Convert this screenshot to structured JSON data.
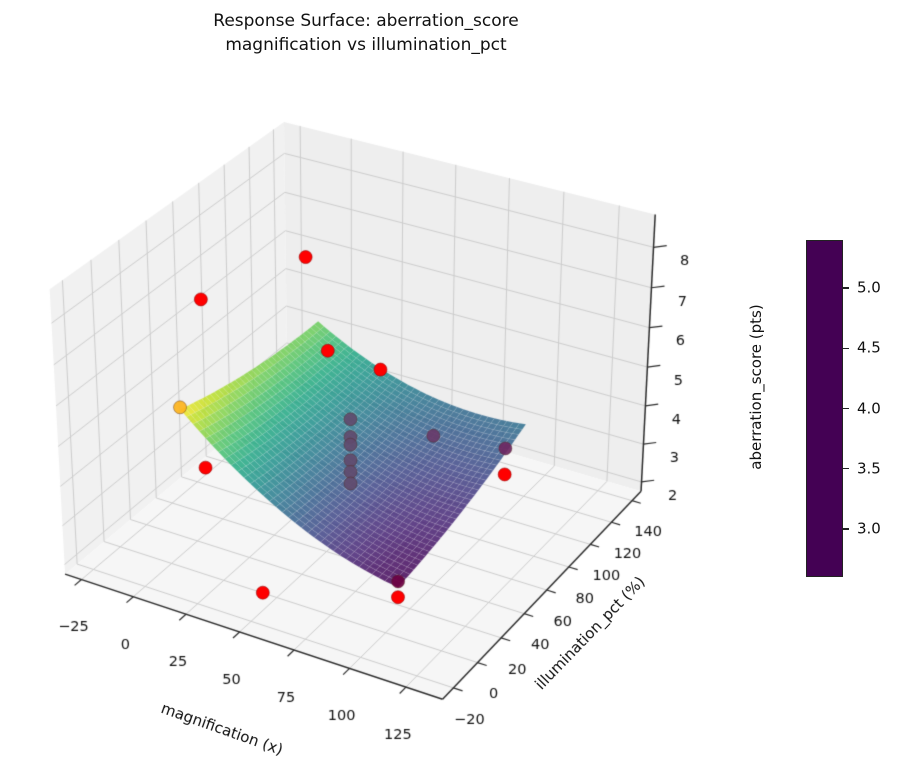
{
  "title": {
    "line1": "Response Surface: aberration_score",
    "line2": "magnification vs illumination_pct"
  },
  "chart_data": {
    "type": "surface",
    "subtype": "3d-response-surface-with-scatter",
    "axes": {
      "x": {
        "label": "magnification (x)",
        "ticks": [
          -25,
          0,
          25,
          50,
          75,
          100,
          125
        ],
        "lim": [
          -33,
          141
        ]
      },
      "y": {
        "label": "illumination_pct (%)",
        "ticks": [
          -20,
          0,
          20,
          40,
          60,
          80,
          100,
          120,
          140
        ],
        "lim": [
          -28.8,
          148.8
        ]
      },
      "z": {
        "label": "aberration_score (pts)",
        "ticks": [
          2,
          3,
          4,
          5,
          6,
          7,
          8
        ],
        "lim": [
          1.75,
          8.8
        ]
      }
    },
    "view": {
      "elev": 30,
      "azim": -60,
      "dist": 7.5
    },
    "surface": {
      "x_range": [
        0,
        100
      ],
      "y_range": [
        10,
        120
      ],
      "grid_n": 34,
      "coefficients": {
        "b0": 5.5145,
        "b1": -0.0495,
        "b2": -0.011955,
        "b3": 0.0002,
        "b4": 5e-05,
        "b5": 0.00015
      },
      "colormap": "viridis",
      "alpha": 0.85,
      "z_min": 2.6,
      "z_max": 5.4
    },
    "scatter": {
      "color": "#ff0000",
      "points": [
        {
          "x": -20.7,
          "y": 60,
          "z": 6.55,
          "occluded": false
        },
        {
          "x": 0,
          "y": 110,
          "z": 6.7,
          "occluded": false
        },
        {
          "x": 25,
          "y": 85,
          "z": 5.3,
          "occluded": false
        },
        {
          "x": 50,
          "y": 85,
          "z": 5.2,
          "occluded": false
        },
        {
          "x": -20.7,
          "y": 60,
          "z": 2.2,
          "occluded": false
        },
        {
          "x": 50,
          "y": -10.7,
          "z": 2.2,
          "occluded": false
        },
        {
          "x": 100,
          "y": 10,
          "z": 2.35,
          "occluded": false
        },
        {
          "x": 120.7,
          "y": 60,
          "z": 4.35,
          "occluded": false
        },
        {
          "x": 120.7,
          "y": 60,
          "z": 5.0,
          "occluded": true
        },
        {
          "x": 0,
          "y": 10,
          "z": 5.45,
          "occluded": true
        },
        {
          "x": 75,
          "y": 85,
          "z": 3.9,
          "occluded": true
        },
        {
          "x": 100,
          "y": 10,
          "z": 2.75,
          "occluded": true
        },
        {
          "x": 50,
          "y": 60,
          "z": 4.6,
          "occluded": true
        },
        {
          "x": 50,
          "y": 60,
          "z": 4.15,
          "occluded": true
        },
        {
          "x": 50,
          "y": 60,
          "z": 3.95,
          "occluded": true
        },
        {
          "x": 50,
          "y": 60,
          "z": 3.55,
          "occluded": true
        },
        {
          "x": 50,
          "y": 60,
          "z": 3.25,
          "occluded": true
        },
        {
          "x": 50,
          "y": 60,
          "z": 2.95,
          "occluded": true
        }
      ]
    },
    "colorbar": {
      "ticks": [
        3.0,
        3.5,
        4.0,
        4.5,
        5.0
      ],
      "vmin": 2.6,
      "vmax": 5.4
    }
  },
  "colors": {
    "background": "#ffffff",
    "pane_left": "#f1f1f1",
    "pane_right": "#eeeeee",
    "pane_floor": "#f6f6f6",
    "grid": "#cdcdcd",
    "axis_line": "#2b2b2b",
    "tick_text": "#111111",
    "scatter_red": "#ff0000"
  }
}
